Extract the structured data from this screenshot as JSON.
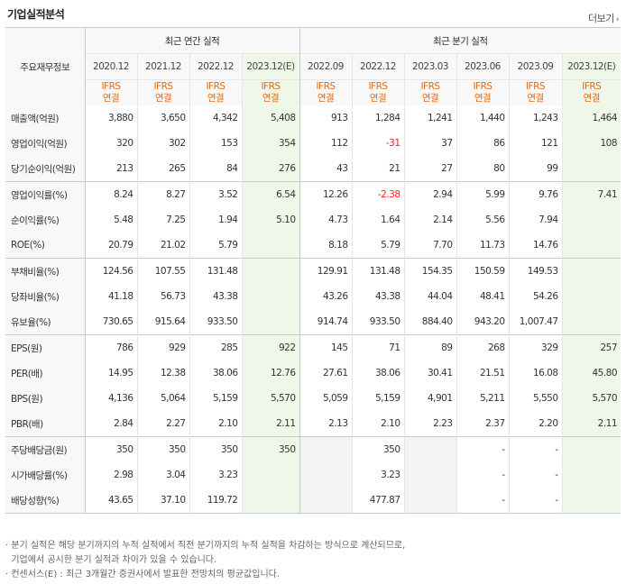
{
  "header": {
    "title": "기업실적분석",
    "more_label": "더보기"
  },
  "columns": {
    "key_label": "주요재무정보",
    "group_annual": "최근 연간 실적",
    "group_quarter": "최근 분기 실적",
    "periods": [
      "2020.12",
      "2021.12",
      "2022.12",
      "2023.12(E)",
      "2022.09",
      "2022.12",
      "2023.03",
      "2023.06",
      "2023.09",
      "2023.12(E)"
    ],
    "basis_line1": "IFRS",
    "basis_line2": "연결"
  },
  "rows": [
    {
      "label": "매출액(억원)",
      "values": [
        "3,880",
        "3,650",
        "4,342",
        "5,408",
        "913",
        "1,284",
        "1,241",
        "1,440",
        "1,243",
        "1,464"
      ]
    },
    {
      "label": "영업이익(억원)",
      "values": [
        "320",
        "302",
        "153",
        "354",
        "112",
        "-31",
        "37",
        "86",
        "121",
        "108"
      ]
    },
    {
      "label": "당기순이익(억원)",
      "values": [
        "213",
        "265",
        "84",
        "276",
        "43",
        "21",
        "27",
        "80",
        "99",
        ""
      ]
    },
    {
      "label": "영업이익률(%)",
      "values": [
        "8.24",
        "8.27",
        "3.52",
        "6.54",
        "12.26",
        "-2.38",
        "2.94",
        "5.99",
        "9.76",
        "7.41"
      ]
    },
    {
      "label": "순이익률(%)",
      "values": [
        "5.48",
        "7.25",
        "1.94",
        "5.10",
        "4.73",
        "1.64",
        "2.14",
        "5.56",
        "7.94",
        ""
      ]
    },
    {
      "label": "ROE(%)",
      "values": [
        "20.79",
        "21.02",
        "5.79",
        "",
        "8.18",
        "5.79",
        "7.70",
        "11.73",
        "14.76",
        ""
      ]
    },
    {
      "label": "부채비율(%)",
      "values": [
        "124.56",
        "107.55",
        "131.48",
        "",
        "129.91",
        "131.48",
        "154.35",
        "150.59",
        "149.53",
        ""
      ]
    },
    {
      "label": "당좌비율(%)",
      "values": [
        "41.18",
        "56.73",
        "43.38",
        "",
        "43.26",
        "43.38",
        "44.04",
        "48.41",
        "54.26",
        ""
      ]
    },
    {
      "label": "유보율(%)",
      "values": [
        "730.65",
        "915.64",
        "933.50",
        "",
        "914.74",
        "933.50",
        "884.40",
        "943.20",
        "1,007.47",
        ""
      ]
    },
    {
      "label": "EPS(원)",
      "values": [
        "786",
        "929",
        "285",
        "922",
        "145",
        "71",
        "89",
        "268",
        "329",
        "257"
      ]
    },
    {
      "label": "PER(배)",
      "values": [
        "14.95",
        "12.38",
        "38.06",
        "12.76",
        "27.61",
        "38.06",
        "30.41",
        "21.51",
        "16.08",
        "45.80"
      ]
    },
    {
      "label": "BPS(원)",
      "values": [
        "4,136",
        "5,064",
        "5,159",
        "5,570",
        "5,059",
        "5,159",
        "4,901",
        "5,211",
        "5,550",
        "5,570"
      ]
    },
    {
      "label": "PBR(배)",
      "values": [
        "2.84",
        "2.27",
        "2.10",
        "2.11",
        "2.13",
        "2.10",
        "2.23",
        "2.37",
        "2.20",
        "2.11"
      ]
    },
    {
      "label": "주당배당금(원)",
      "values": [
        "350",
        "350",
        "350",
        "350",
        "",
        "350",
        "",
        "-",
        "-",
        ""
      ]
    },
    {
      "label": "시가배당률(%)",
      "values": [
        "2.98",
        "3.04",
        "3.23",
        "",
        "",
        "3.23",
        "",
        "-",
        "-",
        ""
      ]
    },
    {
      "label": "배당성향(%)",
      "values": [
        "43.65",
        "37.10",
        "119.72",
        "",
        "",
        "477.87",
        "",
        "-",
        "-",
        ""
      ]
    }
  ],
  "notes": [
    "· 분기 실적은 해당 분기까지의 누적 실적에서 직전 분기까지의 누적 실적을 차감하는 방식으로 계산되므로,",
    "  기업에서 공시한 분기 실적과 차이가 있을 수 있습니다.",
    "· 컨센서스(E) : 최근 3개월간 증권사에서 발표한 전망치의 평균값입니다."
  ],
  "colors": {
    "ifrs": "#e26a14",
    "negative": "#ee2222",
    "estimate_bg": "#eef7e8",
    "blank_bg": "#f3f3f3",
    "label_bg": "#f8f8f8"
  }
}
